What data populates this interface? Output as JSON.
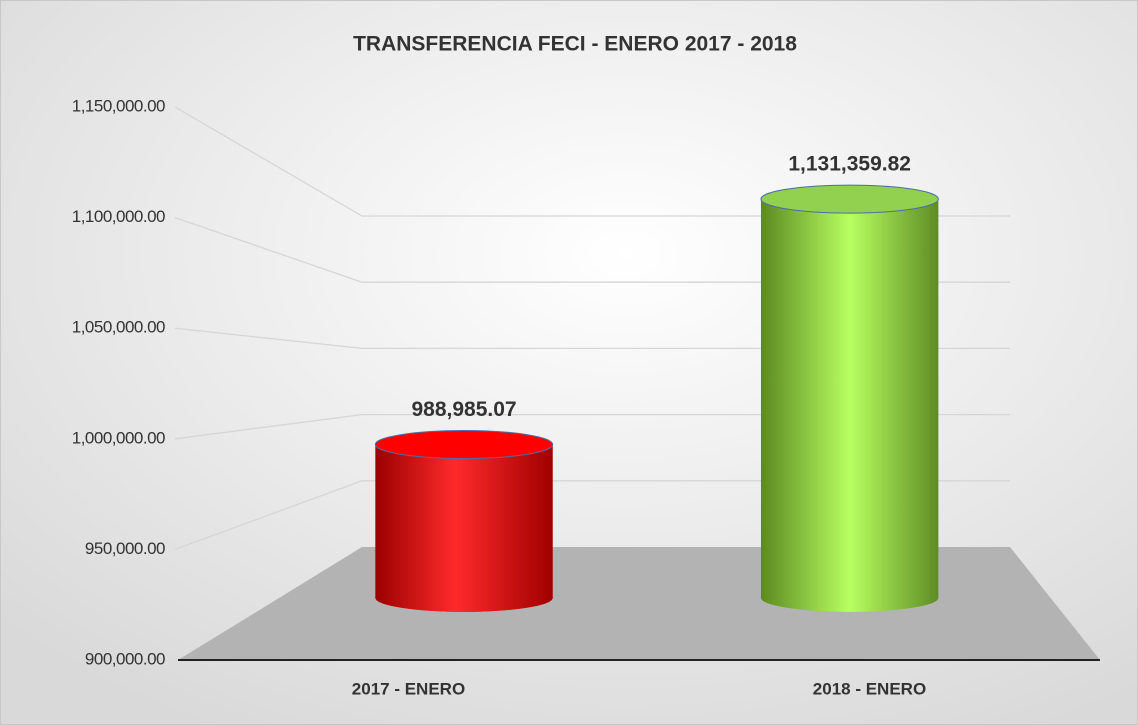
{
  "chart_data": {
    "type": "bar",
    "title": "TRANSFERENCIA FECI - ENERO 2017 - 2018",
    "categories": [
      "2017 - ENERO",
      "2018 - ENERO"
    ],
    "values": [
      988985.07,
      1131359.82
    ],
    "value_labels": [
      "988,985.07",
      "1,131,359.82"
    ],
    "colors": [
      "#ff0000",
      "#92d050"
    ],
    "ylim": [
      900000,
      1150000
    ],
    "yticks": [
      {
        "value": 900000,
        "label": "900,000.00"
      },
      {
        "value": 950000,
        "label": "950,000.00"
      },
      {
        "value": 1000000,
        "label": "1,000,000.00"
      },
      {
        "value": 1050000,
        "label": "1,050,000.00"
      },
      {
        "value": 1100000,
        "label": "1,100,000.00"
      },
      {
        "value": 1150000,
        "label": "1,150,000.00"
      }
    ],
    "grid": true
  }
}
